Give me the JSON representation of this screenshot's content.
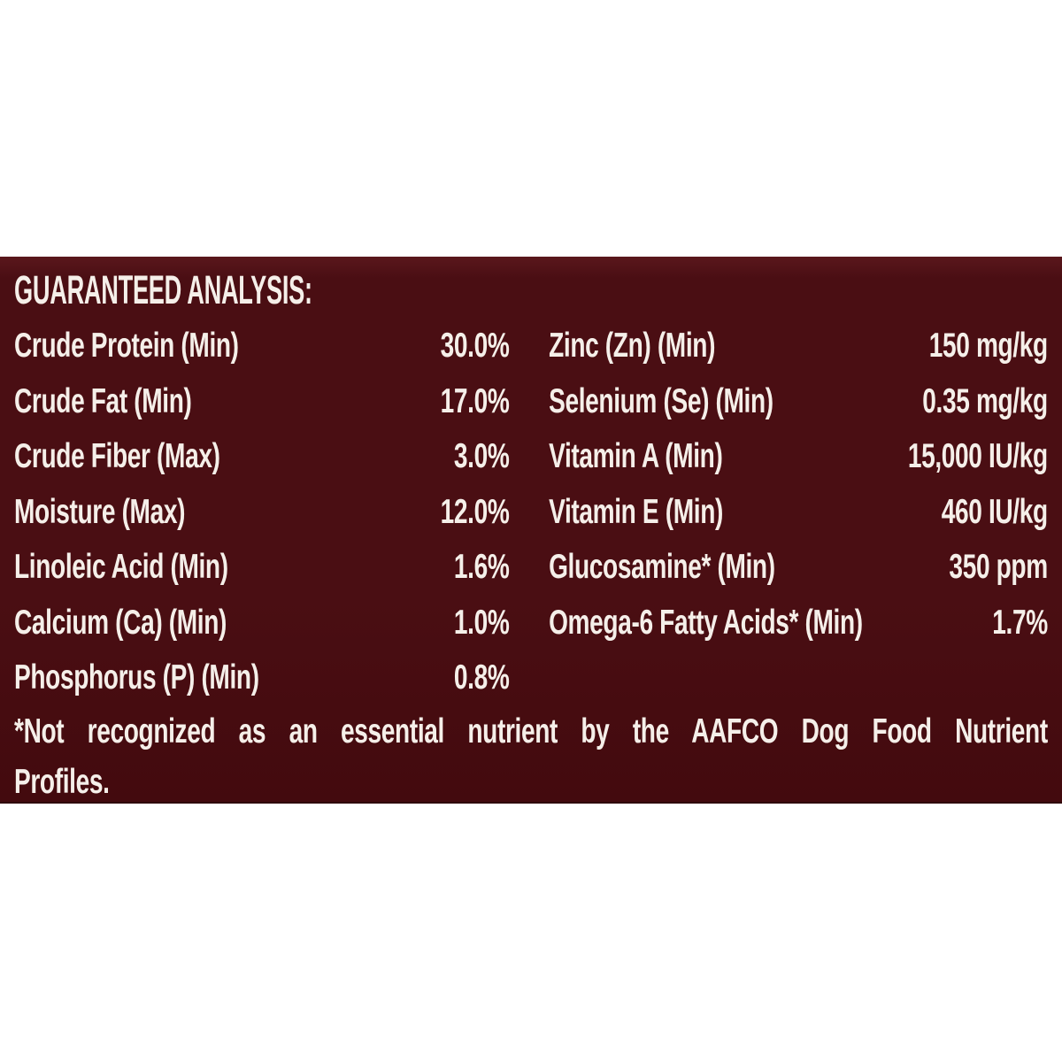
{
  "colors": {
    "page_bg": "#ffffff",
    "panel_bg": "#4a0e13",
    "panel_bg_top": "#5a171c",
    "panel_bg_bottom": "#430a0e",
    "text_color": "#f5efe9"
  },
  "panel": {
    "heading": "GUARANTEED ANALYSIS:",
    "left_rows": [
      {
        "label": "Crude Protein (Min)",
        "value": "30.0%"
      },
      {
        "label": "Crude Fat (Min)",
        "value": "17.0%"
      },
      {
        "label": "Crude Fiber (Max)",
        "value": "3.0%"
      },
      {
        "label": "Moisture (Max)",
        "value": "12.0%"
      },
      {
        "label": "Linoleic Acid (Min)",
        "value": "1.6%"
      },
      {
        "label": "Calcium (Ca) (Min)",
        "value": "1.0%"
      },
      {
        "label": "Phosphorus (P) (Min)",
        "value": "0.8%"
      }
    ],
    "right_rows": [
      {
        "label": "Zinc (Zn) (Min)",
        "value": "150 mg/kg"
      },
      {
        "label": "Selenium (Se) (Min)",
        "value": "0.35 mg/kg"
      },
      {
        "label": "Vitamin A (Min)",
        "value": "15,000 IU/kg"
      },
      {
        "label": "Vitamin E (Min)",
        "value": "460 IU/kg"
      },
      {
        "label": "Glucosamine* (Min)",
        "value": "350 ppm"
      },
      {
        "label": "Omega-6 Fatty Acids* (Min)",
        "value": "1.7%"
      }
    ],
    "footnote_line1": "*Not recognized as an essential nutrient by the AAFCO Dog Food Nutrient",
    "footnote_line2": "Profiles."
  }
}
